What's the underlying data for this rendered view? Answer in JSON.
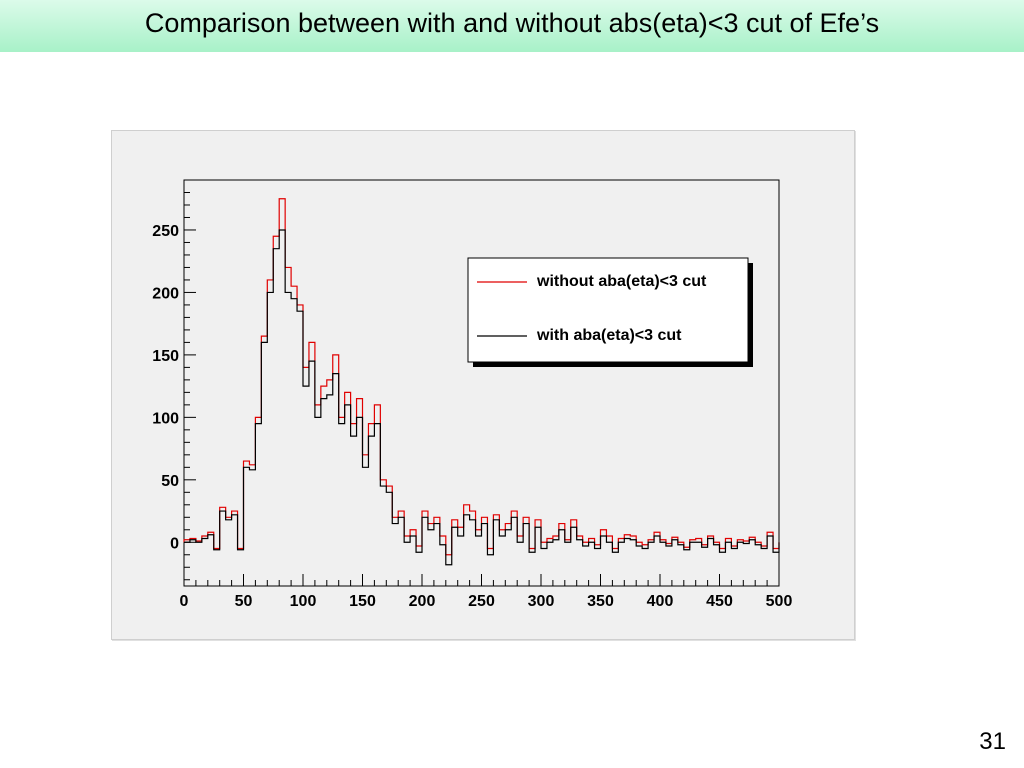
{
  "slide": {
    "title": "Comparison between with and without abs(eta)<3 cut of Efe’s",
    "page_number": "31"
  },
  "colors": {
    "banner_top": "#dcfbea",
    "banner_bottom": "#a8f1c8",
    "plot_background": "#f0f0f0",
    "series_without": "#e00000",
    "series_with": "#000000"
  },
  "chart_data": {
    "type": "line",
    "step": true,
    "title": "",
    "xlabel": "",
    "ylabel": "",
    "xlim": [
      0,
      500
    ],
    "ylim": [
      -35,
      290
    ],
    "bin_width": 5,
    "x_ticks": [
      0,
      50,
      100,
      150,
      200,
      250,
      300,
      350,
      400,
      450,
      500
    ],
    "y_ticks": [
      0,
      50,
      100,
      150,
      200,
      250
    ],
    "x_tick_labels": [
      "0",
      "50",
      "100",
      "150",
      "200",
      "250",
      "300",
      "350",
      "400",
      "450",
      "500"
    ],
    "y_tick_labels": [
      "0",
      "50",
      "100",
      "150",
      "200",
      "250"
    ],
    "grid": false,
    "legend_position": "top-right",
    "legend": [
      "without aba(eta)<3 cut",
      "with aba(eta)<3 cut"
    ],
    "x": [
      0,
      5,
      10,
      15,
      20,
      25,
      30,
      35,
      40,
      45,
      50,
      55,
      60,
      65,
      70,
      75,
      80,
      85,
      90,
      95,
      100,
      105,
      110,
      115,
      120,
      125,
      130,
      135,
      140,
      145,
      150,
      155,
      160,
      165,
      170,
      175,
      180,
      185,
      190,
      195,
      200,
      205,
      210,
      215,
      220,
      225,
      230,
      235,
      240,
      245,
      250,
      255,
      260,
      265,
      270,
      275,
      280,
      285,
      290,
      295,
      300,
      305,
      310,
      315,
      320,
      325,
      330,
      335,
      340,
      345,
      350,
      355,
      360,
      365,
      370,
      375,
      380,
      385,
      390,
      395,
      400,
      405,
      410,
      415,
      420,
      425,
      430,
      435,
      440,
      445,
      450,
      455,
      460,
      465,
      470,
      475,
      480,
      485,
      490,
      495
    ],
    "series": [
      {
        "name": "without aba(eta)<3 cut",
        "values": [
          2,
          3,
          1,
          5,
          8,
          -5,
          28,
          20,
          25,
          -5,
          65,
          62,
          100,
          165,
          210,
          245,
          275,
          220,
          205,
          190,
          140,
          160,
          110,
          125,
          130,
          150,
          100,
          120,
          95,
          115,
          70,
          95,
          110,
          50,
          45,
          20,
          25,
          5,
          10,
          -3,
          25,
          15,
          20,
          5,
          -10,
          18,
          12,
          30,
          25,
          10,
          20,
          -5,
          22,
          10,
          15,
          25,
          5,
          20,
          -5,
          18,
          0,
          3,
          5,
          15,
          2,
          18,
          5,
          0,
          3,
          -2,
          10,
          5,
          -5,
          3,
          6,
          5,
          0,
          -2,
          2,
          8,
          2,
          -1,
          4,
          0,
          -4,
          2,
          3,
          -2,
          5,
          0,
          -5,
          3,
          -3,
          2,
          1,
          4,
          0,
          -3,
          8,
          -5
        ]
      },
      {
        "name": "with aba(eta)<3 cut",
        "values": [
          0,
          2,
          0,
          3,
          6,
          -6,
          25,
          18,
          22,
          -6,
          60,
          58,
          95,
          160,
          200,
          235,
          250,
          200,
          195,
          185,
          125,
          145,
          100,
          115,
          118,
          135,
          95,
          110,
          85,
          100,
          60,
          85,
          95,
          45,
          40,
          15,
          20,
          0,
          5,
          -8,
          20,
          10,
          15,
          -2,
          -18,
          12,
          5,
          22,
          18,
          5,
          15,
          -10,
          18,
          5,
          10,
          20,
          0,
          15,
          -8,
          12,
          -5,
          0,
          2,
          10,
          0,
          12,
          2,
          -3,
          0,
          -5,
          5,
          0,
          -8,
          0,
          3,
          2,
          -3,
          -5,
          0,
          5,
          0,
          -3,
          2,
          -2,
          -6,
          0,
          0,
          -4,
          3,
          -2,
          -8,
          0,
          -5,
          0,
          -1,
          2,
          -2,
          -5,
          5,
          -8
        ]
      }
    ]
  }
}
